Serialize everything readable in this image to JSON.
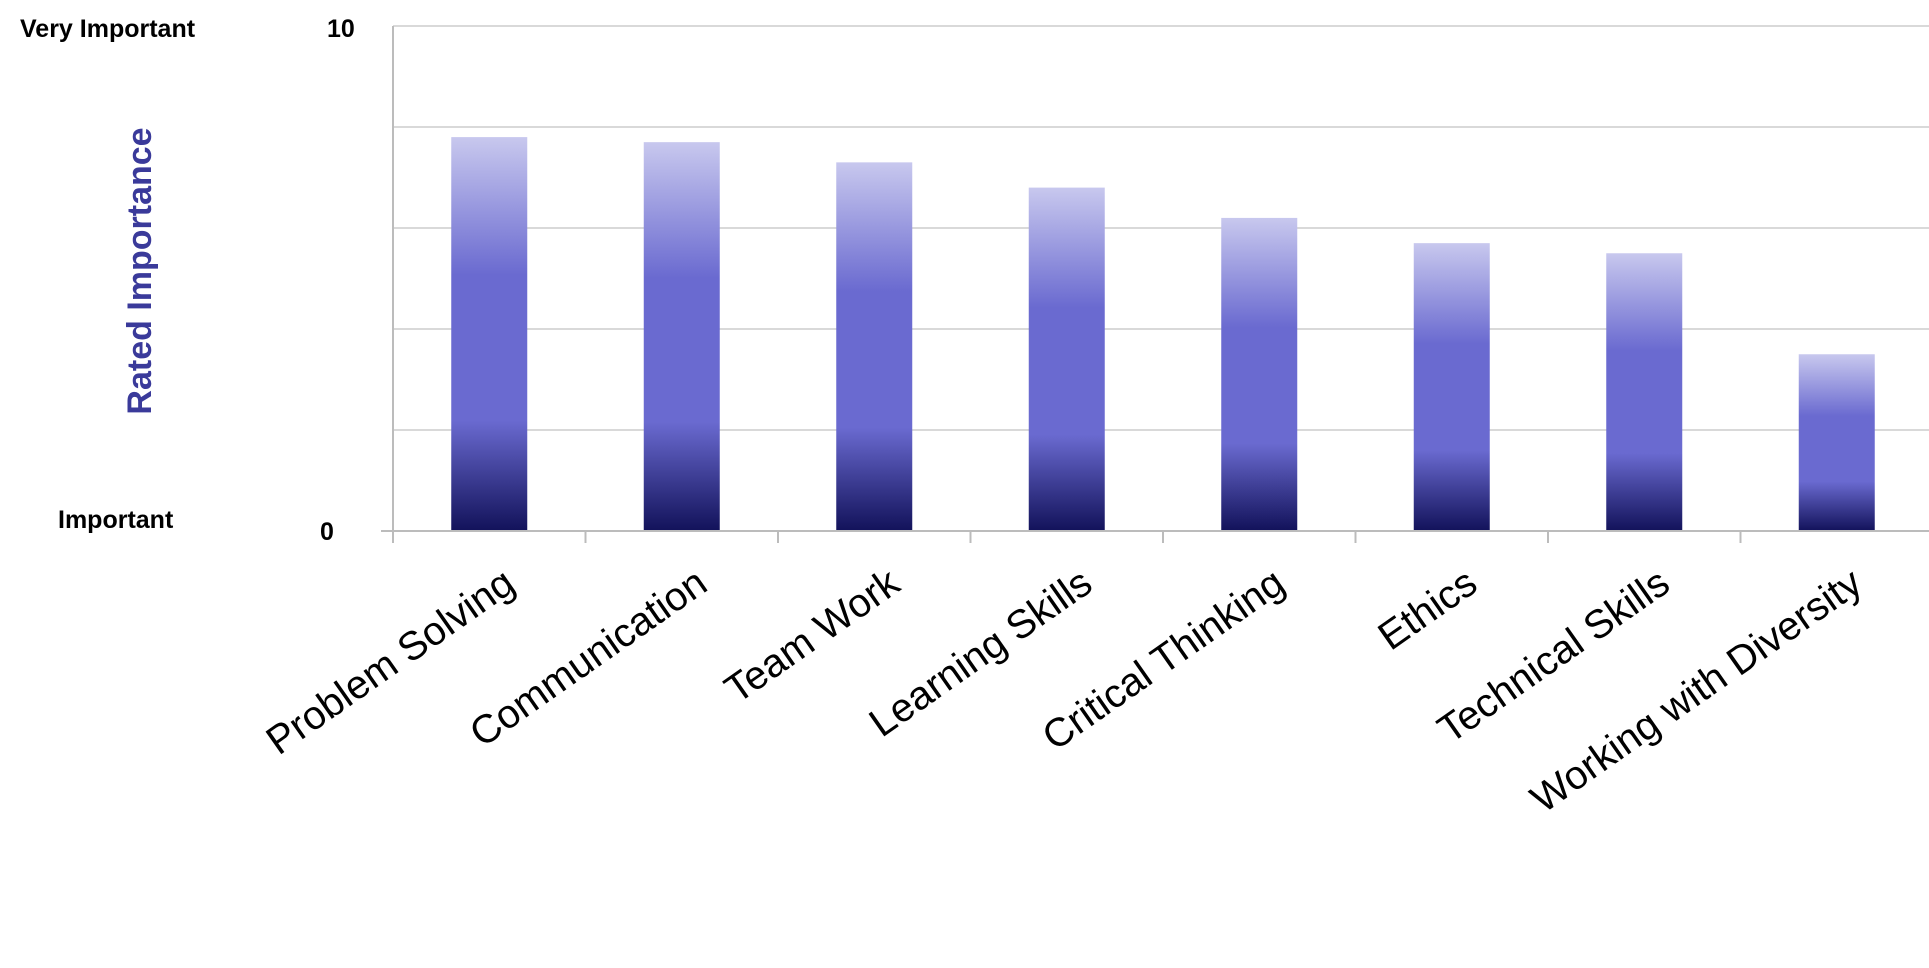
{
  "chart_data": {
    "type": "bar",
    "title": "",
    "xlabel": "",
    "ylabel": "Rated Importance",
    "ylim": [
      0,
      10
    ],
    "yticks": [
      0,
      10
    ],
    "ytick_labels": [
      "0",
      "10"
    ],
    "y_level_labels": {
      "top": "Very Important",
      "bottom": "Important"
    },
    "grid": true,
    "gridlines": [
      2,
      4,
      6,
      8,
      10
    ],
    "categories": [
      "Problem Solving",
      "Communication",
      "Team Work",
      "Learning Skills",
      "Critical Thinking",
      "Ethics",
      "Technical Skills",
      "Working with Diversity"
    ],
    "values": [
      7.8,
      7.7,
      7.3,
      6.8,
      6.2,
      5.7,
      5.5,
      3.5
    ],
    "colors": {
      "bar_top": "#c8c8ee",
      "bar_mid": "#6a6ad0",
      "bar_bottom": "#12125a",
      "grid": "#d9d9d9",
      "axis": "#bcbcbc",
      "ylabel": "#3a3a9a",
      "text": "#000000"
    }
  }
}
